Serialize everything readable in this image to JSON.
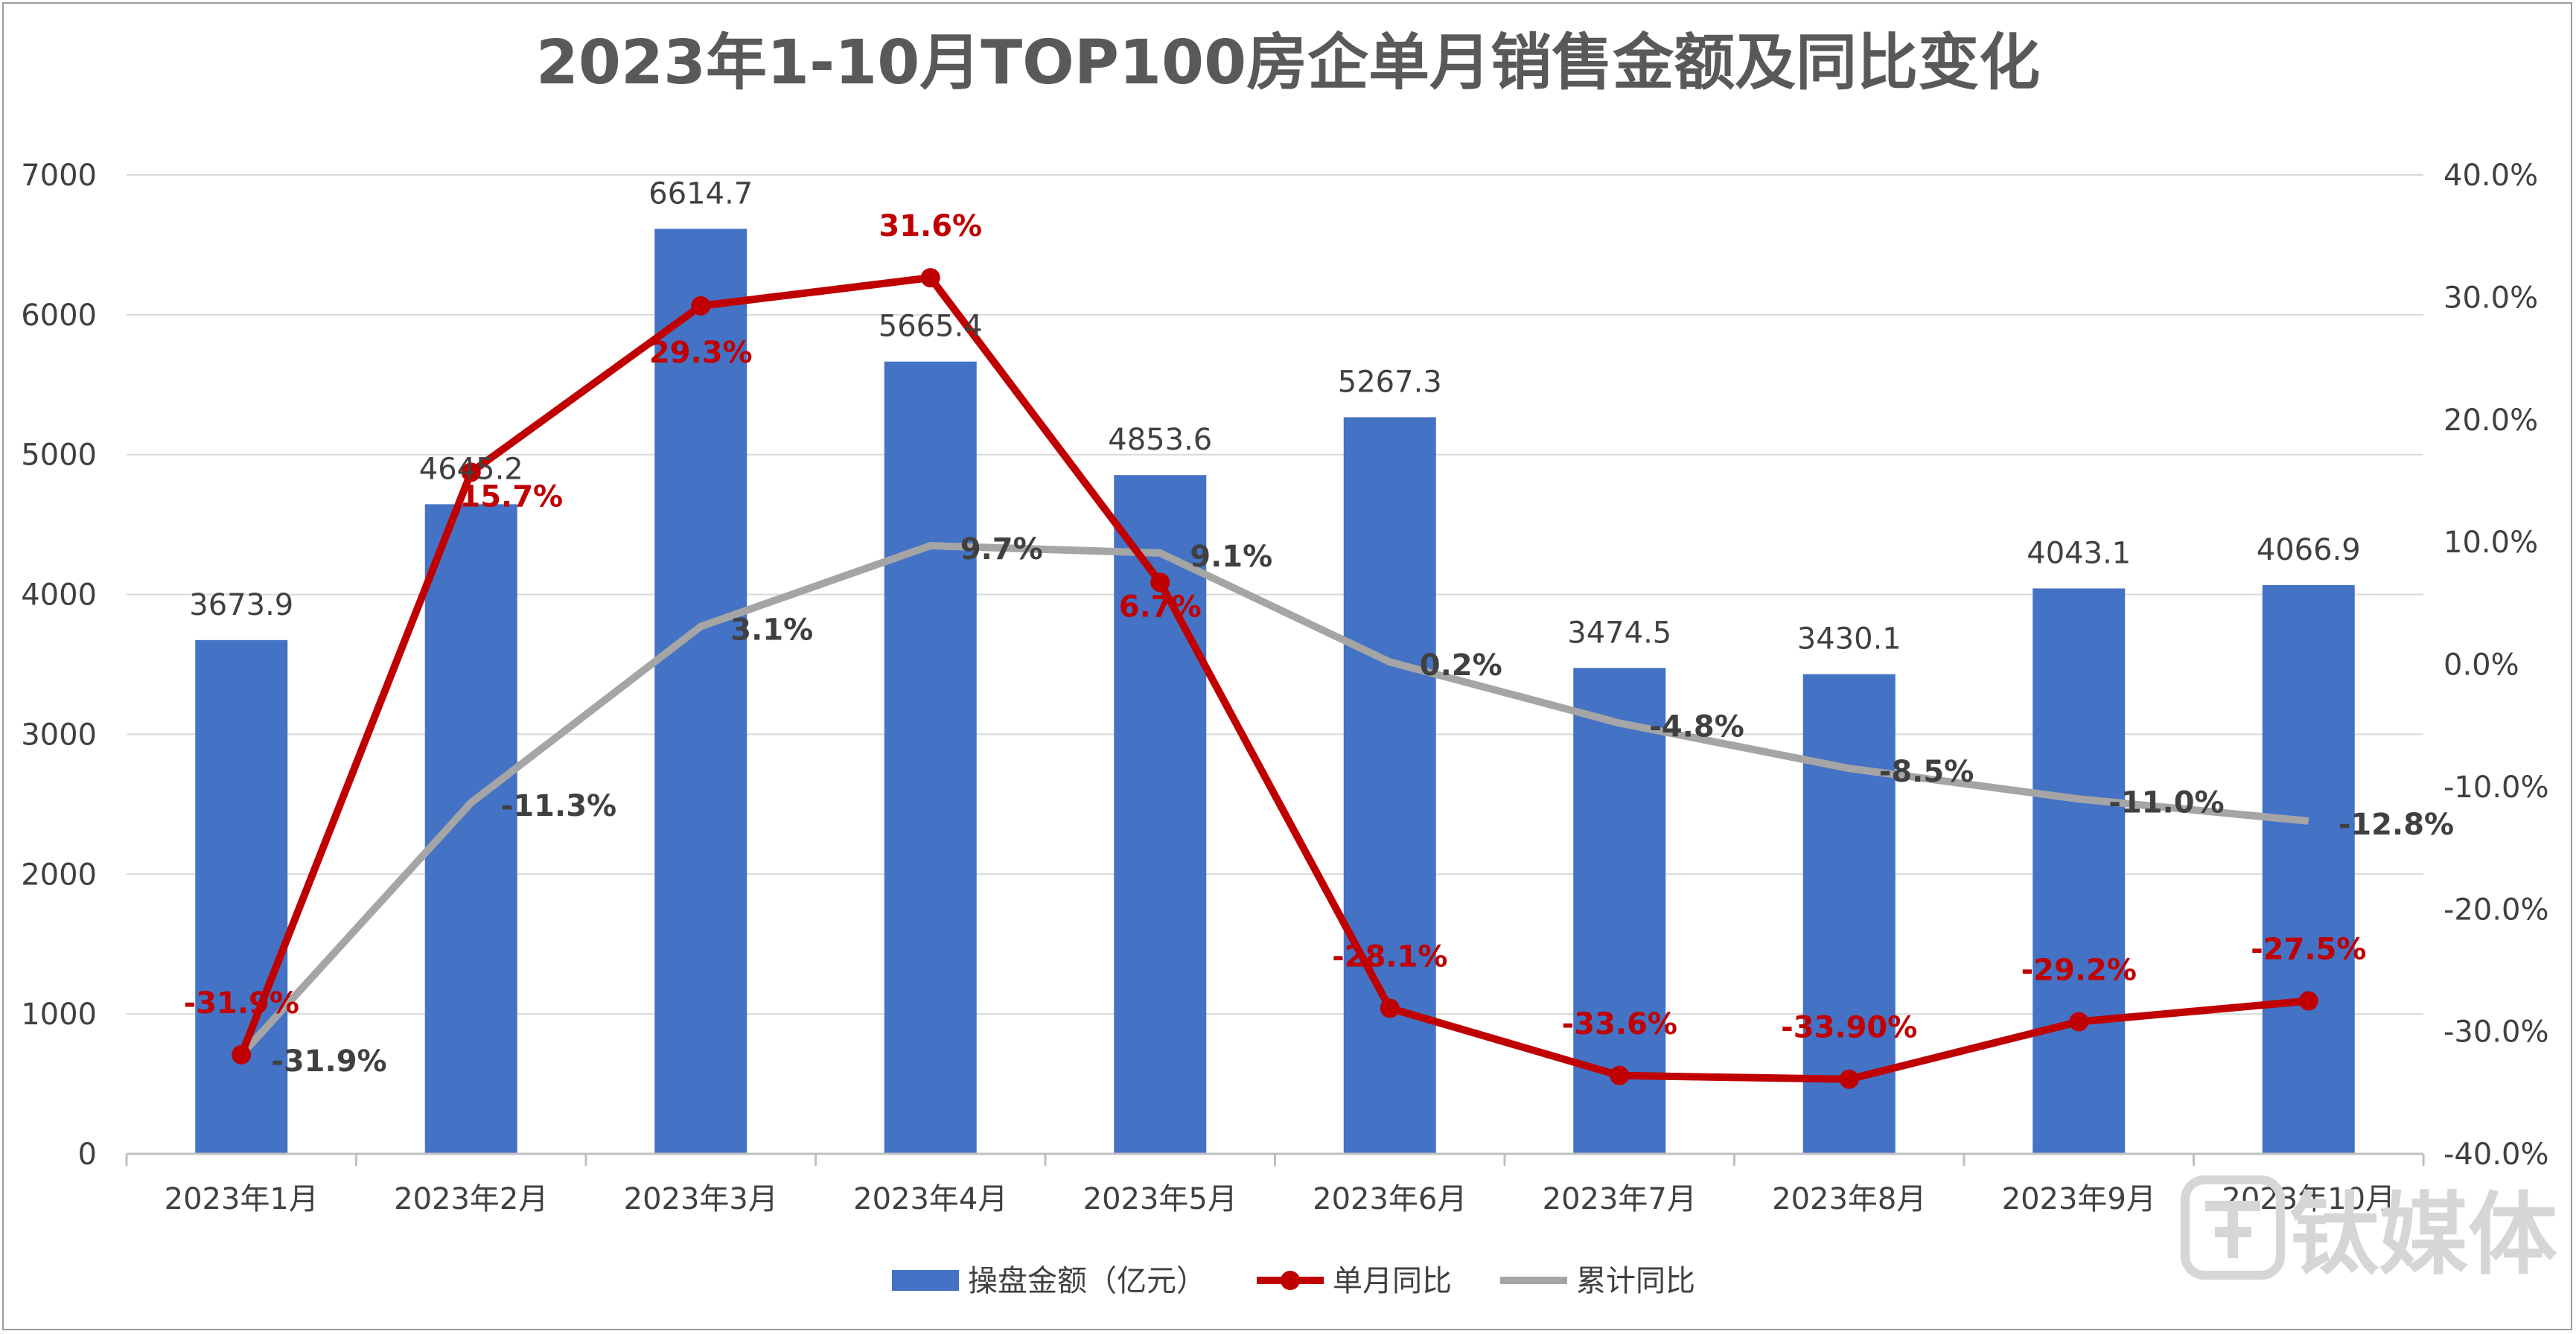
{
  "chart_data": {
    "type": "bar",
    "title": "2023年1-10月TOP100房企单月销售金额及同比变化",
    "categories": [
      "2023年1月",
      "2023年2月",
      "2023年3月",
      "2023年4月",
      "2023年5月",
      "2023年6月",
      "2023年7月",
      "2023年8月",
      "2023年9月",
      "2023年10月"
    ],
    "ylim": [
      0,
      7000
    ],
    "y_ticks": [
      "0",
      "1000",
      "2000",
      "3000",
      "4000",
      "5000",
      "6000",
      "7000"
    ],
    "y2lim": [
      -40,
      40
    ],
    "y2_ticks": [
      "-40.0%",
      "-30.0%",
      "-20.0%",
      "-10.0%",
      "0.0%",
      "10.0%",
      "20.0%",
      "30.0%",
      "40.0%"
    ],
    "grid": true,
    "legend_position": "bottom",
    "series": [
      {
        "name": "操盘金额（亿元）",
        "type": "bar",
        "axis": "left",
        "color": "#4472c4",
        "values": [
          3673.9,
          4645.2,
          6614.7,
          5665.4,
          4853.6,
          5267.3,
          3474.5,
          3430.1,
          4043.1,
          4066.9
        ],
        "labels": [
          "3673.9",
          "4645.2",
          "6614.7",
          "5665.4",
          "4853.6",
          "5267.3",
          "3474.5",
          "3430.1",
          "4043.1",
          "4066.9"
        ]
      },
      {
        "name": "单月同比",
        "type": "line",
        "axis": "right",
        "color": "#c00000",
        "values": [
          -31.9,
          15.7,
          29.3,
          31.6,
          6.7,
          -28.1,
          -33.6,
          -33.9,
          -29.2,
          -27.5
        ],
        "labels": [
          "-31.9%",
          "15.7%",
          "29.3%",
          "31.6%",
          "6.7%",
          "-28.1%",
          "-33.6%",
          "-33.90%",
          "-29.2%",
          "-27.5%"
        ]
      },
      {
        "name": "累计同比",
        "type": "line",
        "axis": "right",
        "color": "#a5a5a5",
        "values": [
          -31.9,
          -11.3,
          3.1,
          9.7,
          9.1,
          0.2,
          -4.8,
          -8.5,
          -11.0,
          -12.8
        ],
        "labels": [
          "-31.9%",
          "-11.3%",
          "3.1%",
          "9.7%",
          "9.1%",
          "0.2%",
          "-4.8%",
          "-8.5%",
          "-11.0%",
          "-12.8%"
        ]
      }
    ]
  },
  "watermark": {
    "icon": "tmt-logo-icon",
    "text": "钛媒体"
  }
}
